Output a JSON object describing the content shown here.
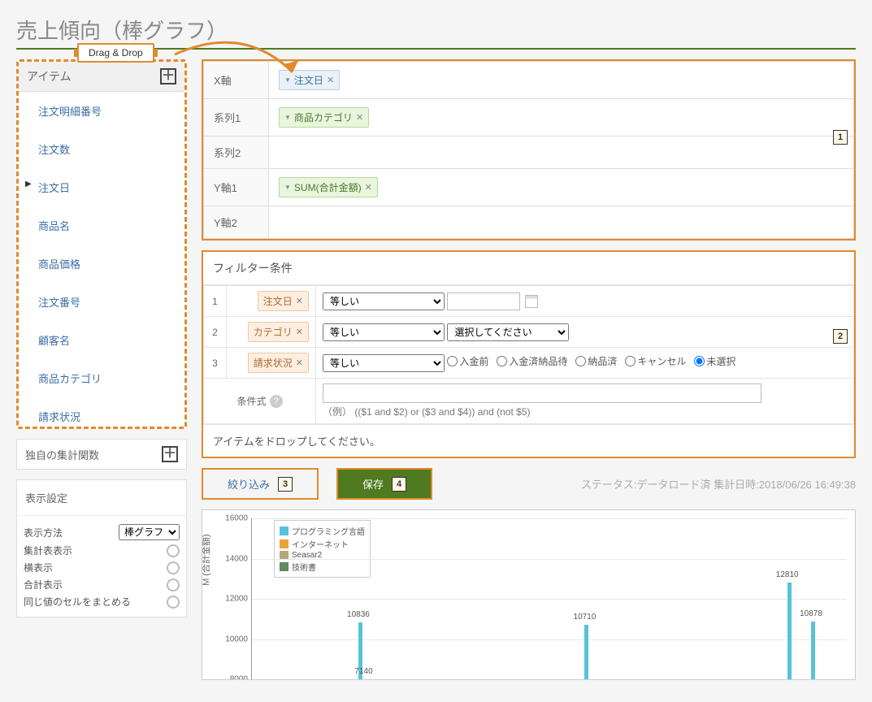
{
  "page_title": "売上傾向（棒グラフ）",
  "drag_drop_label": "Drag  & Drop",
  "items_panel": {
    "title": "アイテム",
    "items": [
      "注文明細番号",
      "注文数",
      "注文日",
      "商品名",
      "商品価格",
      "注文番号",
      "顧客名",
      "商品カテゴリ",
      "請求状況"
    ],
    "selected_index": 2
  },
  "agg_panel_title": "独自の集計関数",
  "display_panel": {
    "title": "表示設定",
    "method_label": "表示方法",
    "method_value": "棒グラフ",
    "rows": [
      "集計表表示",
      "横表示",
      "合計表示",
      "同じ値のセルをまとめる"
    ]
  },
  "axis": {
    "labels": {
      "x": "X軸",
      "s1": "系列1",
      "s2": "系列2",
      "y1": "Y軸1",
      "y2": "Y軸2"
    },
    "x_chip": "注文日",
    "s1_chip": "商品カテゴリ",
    "y1_chip": "SUM(合計金額)",
    "badge": "1"
  },
  "filter": {
    "title": "フィルター条件",
    "badge": "2",
    "rows": [
      {
        "idx": "1",
        "chip": "注文日",
        "op": "等しい",
        "type": "date"
      },
      {
        "idx": "2",
        "chip": "カテゴリ",
        "op": "等しい",
        "type": "select",
        "select_placeholder": "選択してください"
      },
      {
        "idx": "3",
        "chip": "請求状況",
        "op": "等しい",
        "type": "radio",
        "options": [
          "入金前",
          "入金済納品待",
          "納品済",
          "キャンセル",
          "未選択"
        ],
        "checked": 4
      }
    ],
    "cond_label": "条件式",
    "cond_hint": "（例）  (($1 and $2) or ($3 and $4)) and (not $5)",
    "drop_hint": "アイテムをドロップしてください。"
  },
  "buttons": {
    "filter": "絞り込み",
    "filter_badge": "3",
    "save": "保存",
    "save_badge": "4"
  },
  "status": "ステータス:データロード済  集計日時:2018/06/26 16:49:38",
  "chart": {
    "ylabel": "M (合計金額)",
    "ymin": 8000,
    "ymax": 16000,
    "ystep": 2000,
    "legend": [
      {
        "label": "プログラミング言語",
        "color": "#56c3d9"
      },
      {
        "label": "インターネット",
        "color": "#e8a33d"
      },
      {
        "label": "Seasar2",
        "color": "#b0a878"
      },
      {
        "label": "技術書",
        "color": "#5f8b5f"
      }
    ],
    "bars": [
      {
        "x_pct": 18,
        "value": 10836,
        "color": "#56c3d9",
        "show_label": true
      },
      {
        "x_pct": 18.9,
        "value": 7140,
        "color": "#e8a33d",
        "show_label": true,
        "label_below": true
      },
      {
        "x_pct": 56,
        "value": 10710,
        "color": "#56c3d9",
        "show_label": true
      },
      {
        "x_pct": 90,
        "value": 12810,
        "color": "#56c3d9",
        "show_label": true
      },
      {
        "x_pct": 94,
        "value": 10878,
        "color": "#56c3d9",
        "show_label": true
      }
    ]
  }
}
